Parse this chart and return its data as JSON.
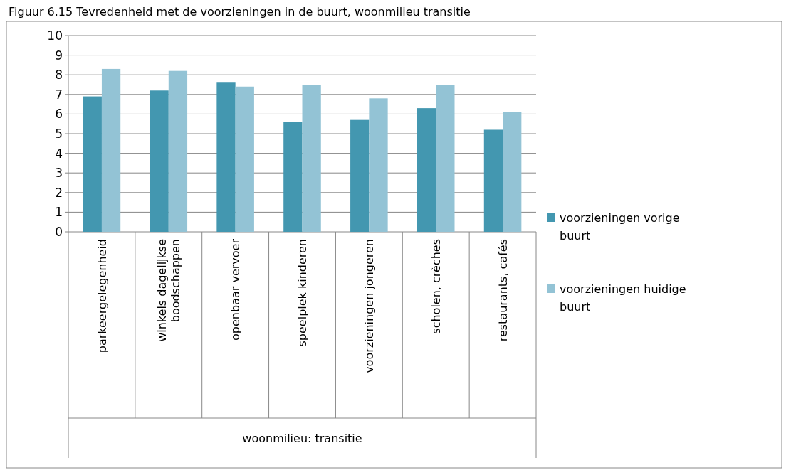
{
  "chart_data": {
    "type": "bar",
    "title": "Figuur 6.15 Tevredenheid met de voorzieningen in de buurt, woonmilieu transitie",
    "annotations": [
      "woonmilieu: transitie"
    ],
    "categories": [
      "parkeergelegenheid",
      "winkels dagelijkse boodschappen",
      "openbaar vervoer",
      "speelplek kinderen",
      "voorzieningen jongeren",
      "scholen, crèches",
      "restaurants, cafés"
    ],
    "series": [
      {
        "name": "voorzieningen vorige buurt",
        "color": "#4397b0",
        "values": [
          6.9,
          7.2,
          7.6,
          5.6,
          5.7,
          6.3,
          5.2
        ]
      },
      {
        "name": "voorzieningen huidige buurt",
        "color": "#93c3d5",
        "values": [
          8.3,
          8.2,
          7.4,
          7.5,
          6.8,
          7.5,
          6.1
        ]
      }
    ],
    "ylim": [
      0,
      10
    ],
    "yticks": [
      0,
      1,
      2,
      3,
      4,
      5,
      6,
      7,
      8,
      9,
      10
    ],
    "grid": "y",
    "legend": "right"
  }
}
